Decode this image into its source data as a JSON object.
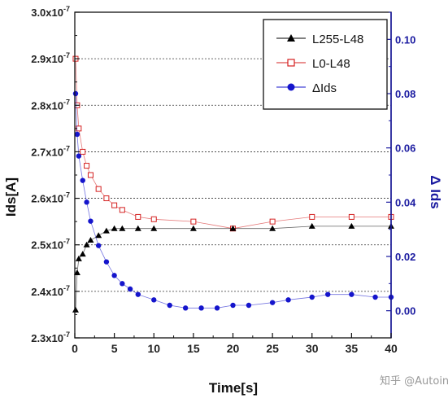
{
  "chart_data": {
    "type": "scatter",
    "xlabel": "Time[s]",
    "ylabel": "Ids[A]",
    "y2label": "Δ Ids",
    "xlim": [
      0,
      40
    ],
    "ylim": [
      2.3e-07,
      3e-07
    ],
    "y2lim": [
      -0.01,
      0.11
    ],
    "x_ticks": [
      "0",
      "5",
      "10",
      "15",
      "20",
      "25",
      "30",
      "35",
      "40"
    ],
    "y_ticks": [
      {
        "mantissa": "2.3x10",
        "exp": "-7"
      },
      {
        "mantissa": "2.4x10",
        "exp": "-7"
      },
      {
        "mantissa": "2.5x10",
        "exp": "-7"
      },
      {
        "mantissa": "2.6x10",
        "exp": "-7"
      },
      {
        "mantissa": "2.7x10",
        "exp": "-7"
      },
      {
        "mantissa": "2.8x10",
        "exp": "-7"
      },
      {
        "mantissa": "2.9x10",
        "exp": "-7"
      },
      {
        "mantissa": "3.0x10",
        "exp": "-7"
      }
    ],
    "y2_ticks": [
      "0.00",
      "0.02",
      "0.04",
      "0.06",
      "0.08",
      "0.10"
    ],
    "grid": "horizontal dotted",
    "legend_position": "top-right",
    "series": [
      {
        "name": "L255-L48",
        "axis": "left",
        "marker": "filled-triangle",
        "color": "#000000",
        "x": [
          0.1,
          0.3,
          0.5,
          1,
          1.5,
          2,
          3,
          4,
          5,
          6,
          8,
          10,
          15,
          20,
          25,
          30,
          35,
          40
        ],
        "y": [
          2.36e-07,
          2.44e-07,
          2.47e-07,
          2.48e-07,
          2.5e-07,
          2.51e-07,
          2.52e-07,
          2.53e-07,
          2.535e-07,
          2.535e-07,
          2.535e-07,
          2.535e-07,
          2.535e-07,
          2.535e-07,
          2.535e-07,
          2.54e-07,
          2.54e-07,
          2.54e-07
        ]
      },
      {
        "name": "L0-L48",
        "axis": "left",
        "marker": "open-square",
        "color": "#d42020",
        "x": [
          0.1,
          0.3,
          0.5,
          1,
          1.5,
          2,
          3,
          4,
          5,
          6,
          8,
          10,
          15,
          20,
          25,
          30,
          35,
          40
        ],
        "y": [
          2.9e-07,
          2.8e-07,
          2.75e-07,
          2.7e-07,
          2.67e-07,
          2.65e-07,
          2.62e-07,
          2.6e-07,
          2.585e-07,
          2.575e-07,
          2.56e-07,
          2.555e-07,
          2.55e-07,
          2.535e-07,
          2.55e-07,
          2.56e-07,
          2.56e-07,
          2.56e-07
        ]
      },
      {
        "name": "ΔIds",
        "axis": "right",
        "marker": "filled-circle",
        "color": "#1515cc",
        "x": [
          0.1,
          0.3,
          0.5,
          1,
          1.5,
          2,
          3,
          4,
          5,
          6,
          7,
          8,
          10,
          12,
          14,
          16,
          18,
          20,
          22,
          25,
          27,
          30,
          32,
          35,
          38,
          40
        ],
        "y": [
          0.08,
          0.065,
          0.057,
          0.048,
          0.04,
          0.033,
          0.024,
          0.018,
          0.013,
          0.01,
          0.008,
          0.006,
          0.004,
          0.002,
          0.001,
          0.001,
          0.001,
          0.002,
          0.002,
          0.003,
          0.004,
          0.005,
          0.006,
          0.006,
          0.005,
          0.005
        ]
      }
    ]
  },
  "watermark": "知乎 @Autoinfo"
}
